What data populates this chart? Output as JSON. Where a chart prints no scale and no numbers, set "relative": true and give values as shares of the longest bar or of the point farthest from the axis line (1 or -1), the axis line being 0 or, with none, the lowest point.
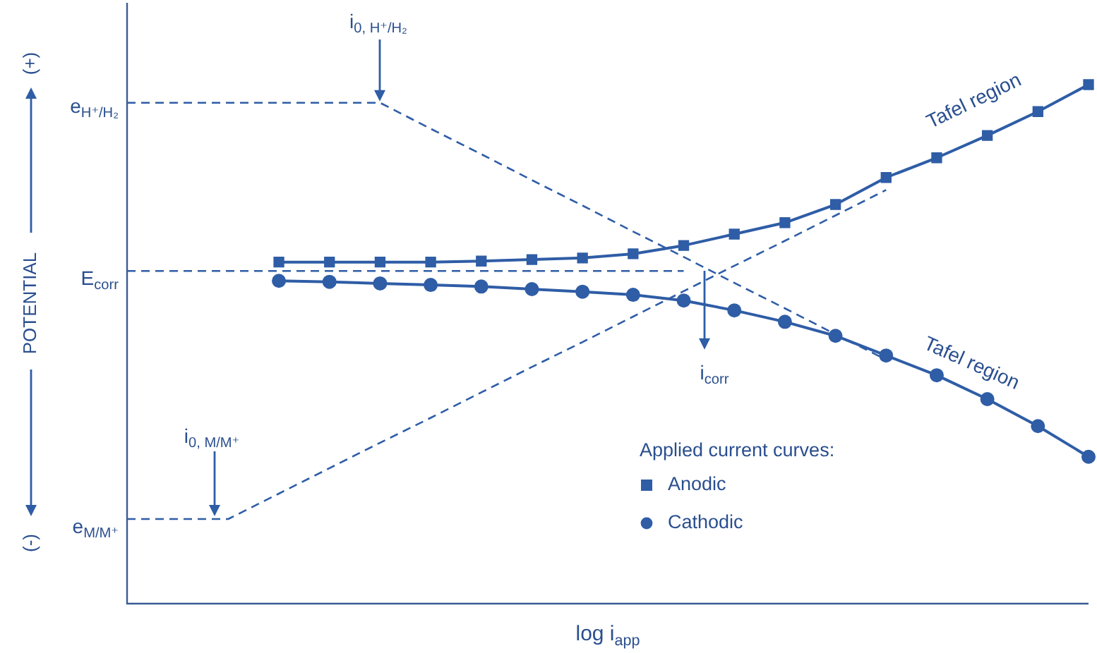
{
  "chart_data": {
    "type": "line",
    "relative": true,
    "ylabel": "POTENTIAL",
    "xlabel": "log i$_{app}$",
    "legend": "bottom right",
    "legend_title": "Applied current curves:",
    "categories": [
      null,
      null,
      null,
      null,
      null,
      null,
      null,
      null,
      null,
      null,
      null,
      null,
      null,
      null,
      null,
      null,
      null,
      null,
      null,
      null
    ],
    "series": [
      {
        "name": "Anodic",
        "color": "#2f5da6",
        "marker": "square",
        "line_style": "solid",
        "values": [
          null,
          null,
          null,
          0.658,
          0.658,
          0.658,
          0.658,
          0.66,
          0.663,
          0.666,
          0.674,
          0.69,
          0.712,
          0.734,
          0.769,
          0.821,
          0.859,
          0.902,
          0.948,
          1
        ]
      },
      {
        "name": "Cathodic",
        "color": "#2f5da6",
        "marker": "circle",
        "line_style": "solid",
        "values": [
          null,
          null,
          null,
          0.622,
          0.62,
          0.617,
          0.614,
          0.611,
          0.606,
          0.601,
          0.595,
          0.584,
          0.565,
          0.543,
          0.516,
          0.478,
          0.44,
          0.394,
          0.342,
          0.283
        ]
      },
      {
        "color": "#2f5da6",
        "marker": "none",
        "line_style": "dashed",
        "values": [
          0.965,
          0.965,
          0.965,
          0.965,
          0.965,
          0.965,
          0.915,
          0.866,
          0.816,
          0.767,
          0.717,
          0.668,
          0.618,
          0.569,
          0.519,
          0.47,
          null,
          null,
          null,
          null
        ]
      },
      {
        "color": "#2f5da6",
        "marker": "none",
        "line_style": "dashed",
        "values": [
          0.163,
          0.163,
          0.163,
          0.212,
          0.261,
          0.31,
          0.358,
          0.407,
          0.456,
          0.504,
          0.553,
          0.602,
          0.651,
          0.699,
          0.748,
          0.797,
          null,
          null,
          null,
          null
        ]
      },
      {
        "color": "#2f5da6",
        "marker": "none",
        "line_style": "dashed",
        "values": [
          0.641,
          0.641,
          0.641,
          0.641,
          0.641,
          0.641,
          0.641,
          0.641,
          0.641,
          0.641,
          0.641,
          0.641,
          null,
          null,
          null,
          null,
          null,
          null,
          null,
          null
        ]
      }
    ],
    "annotations": [
      "(+)",
      "(-)",
      "e$_{H⁺/H₂}$",
      "E$_{corr}$",
      "e$_{M/M⁺}$",
      "i$_{0, H⁺/H₂}$",
      "i$_{0, M/M⁺}$",
      "i$_{corr}$",
      "Tafel region",
      "Tafel region"
    ]
  }
}
